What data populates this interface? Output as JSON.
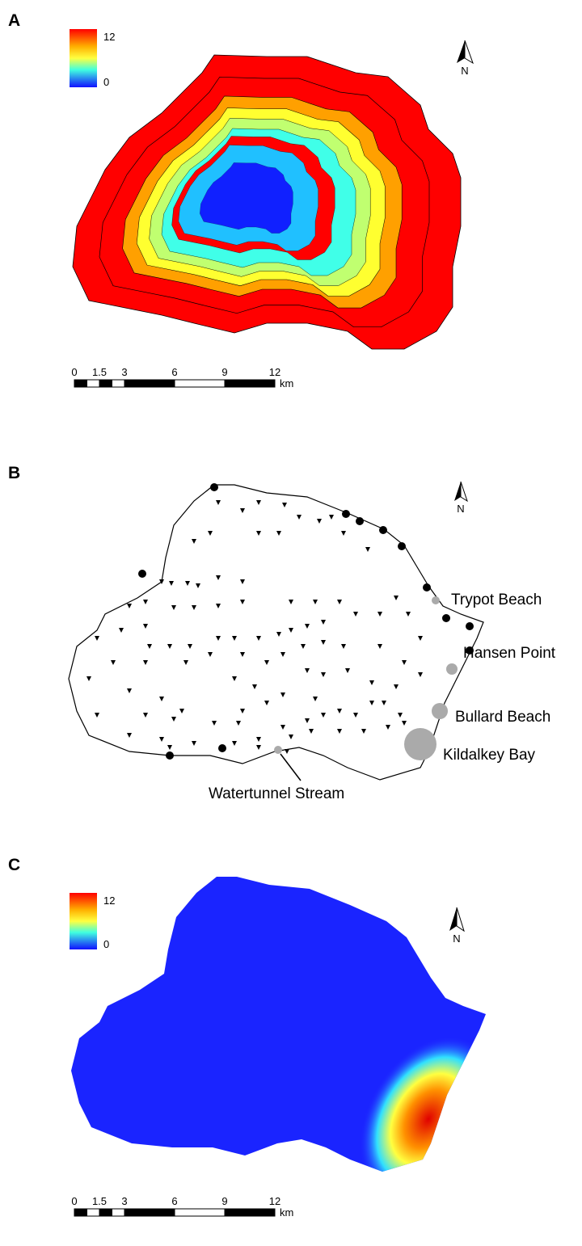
{
  "panels": [
    {
      "label": "A",
      "legend": {
        "max": 12,
        "min": 0
      },
      "north": "N",
      "scale": {
        "ticks": [
          0,
          1.5,
          3,
          6,
          9,
          12
        ],
        "unit": "km"
      }
    },
    {
      "label": "B",
      "north": "N",
      "places": [
        "Trypot Beach",
        "Hansen Point",
        "Bullard Beach",
        "Kildalkey Bay",
        "Watertunnel Stream"
      ]
    },
    {
      "label": "C",
      "legend": {
        "max": 12,
        "min": 0
      },
      "north": "N",
      "scale": {
        "ticks": [
          0,
          1.5,
          3,
          6,
          9,
          12
        ],
        "unit": "km"
      }
    }
  ]
}
